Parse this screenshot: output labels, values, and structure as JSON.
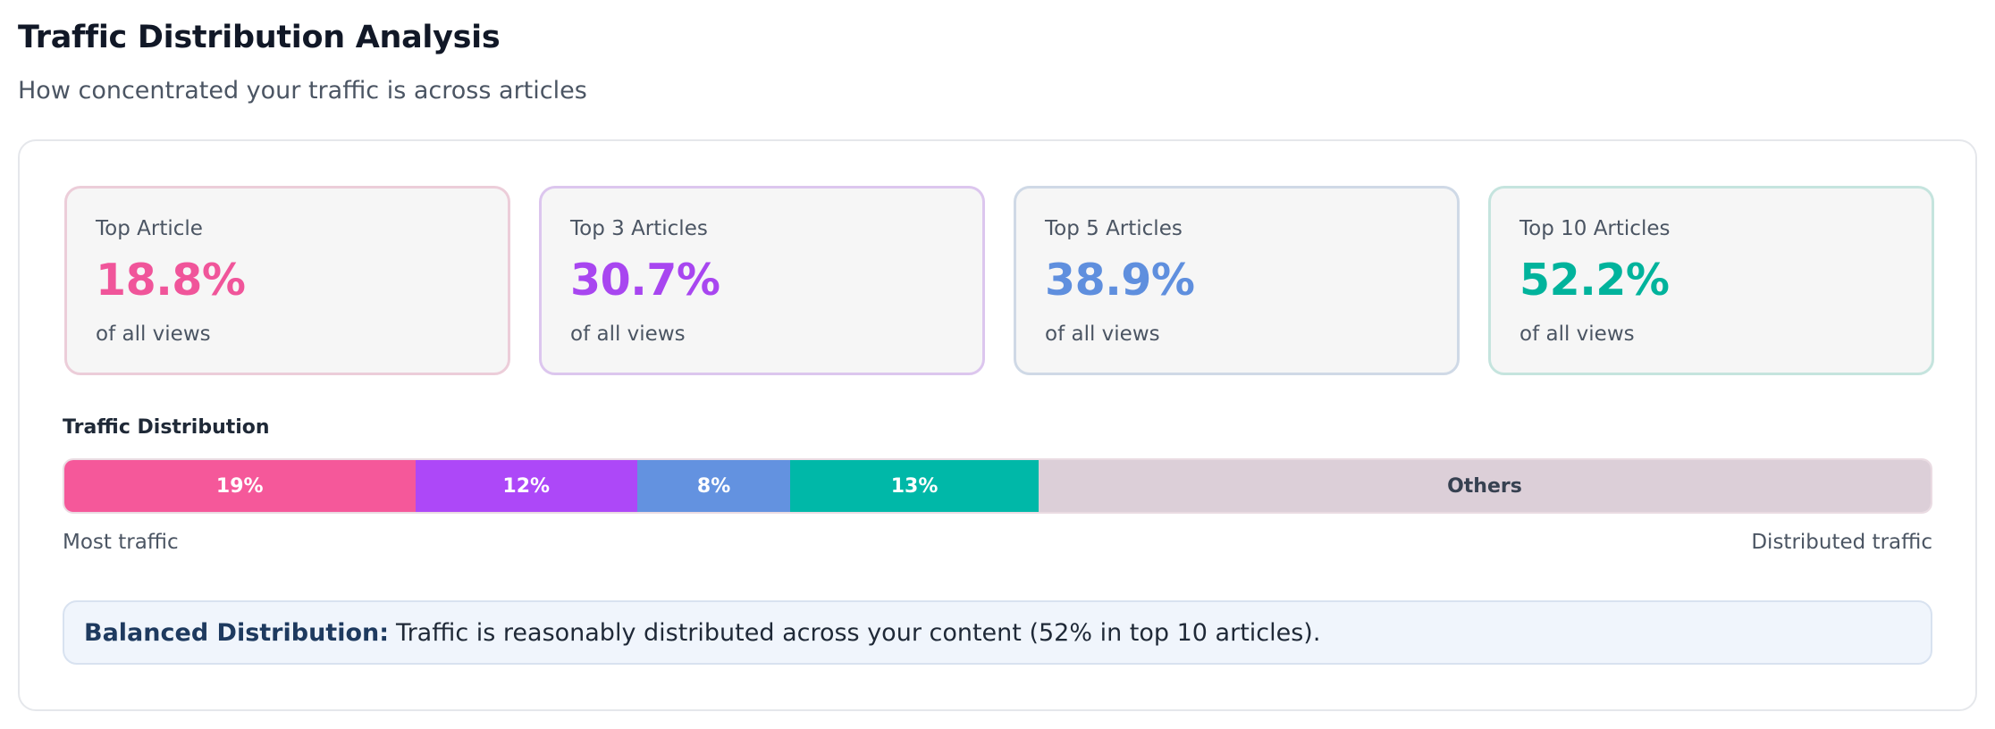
{
  "header": {
    "title": "Traffic Distribution Analysis",
    "subtitle": "How concentrated your traffic is across articles"
  },
  "cards": [
    {
      "label": "Top Article",
      "value": "18.8%",
      "sub": "of all views",
      "color": "#f0559a",
      "border": "#eccdd9"
    },
    {
      "label": "Top 3 Articles",
      "value": "30.7%",
      "sub": "of all views",
      "color": "#a846f0",
      "border": "#dcc6ee"
    },
    {
      "label": "Top 5 Articles",
      "value": "38.9%",
      "sub": "of all views",
      "color": "#5f8fde",
      "border": "#cfd9e6"
    },
    {
      "label": "Top 10 Articles",
      "value": "52.2%",
      "sub": "of all views",
      "color": "#00b39c",
      "border": "#c5e4de"
    }
  ],
  "distribution": {
    "heading": "Traffic Distribution",
    "left_label": "Most traffic",
    "right_label": "Distributed traffic",
    "segments": [
      {
        "label": "19%",
        "share": 18.8,
        "color": "#f5589a"
      },
      {
        "label": "12%",
        "share": 11.9,
        "color": "#ad48f8"
      },
      {
        "label": "8%",
        "share": 8.2,
        "color": "#6392e0"
      },
      {
        "label": "13%",
        "share": 13.3,
        "color": "#00b8a8"
      },
      {
        "label": "Others",
        "share": 47.8,
        "color": "#dccfd8"
      }
    ]
  },
  "callout": {
    "bold": "Balanced Distribution:",
    "text": "Traffic is reasonably distributed across your content (52% in top 10 articles)."
  }
}
